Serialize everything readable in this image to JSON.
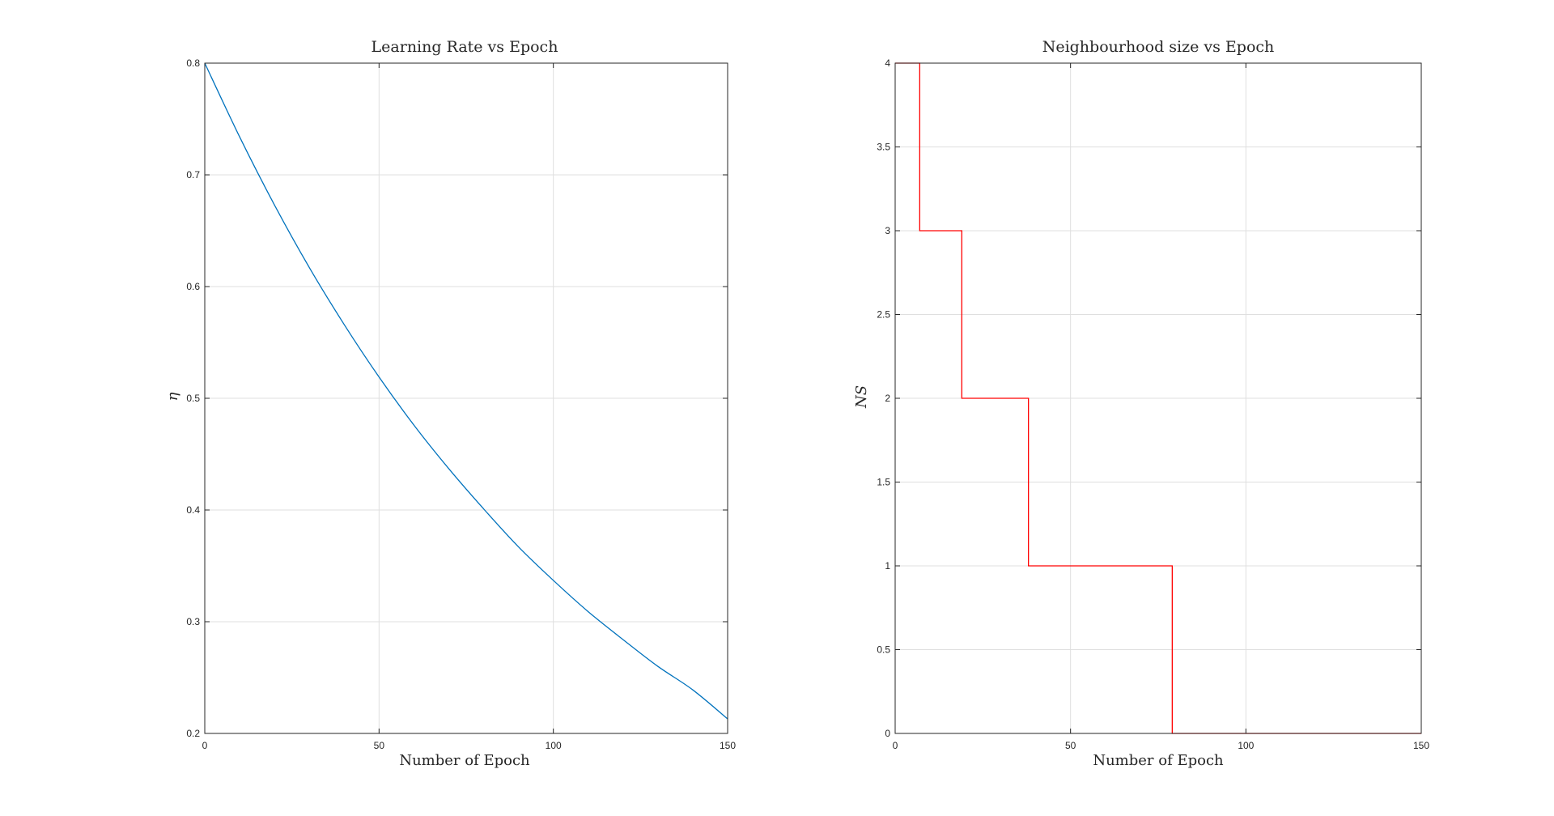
{
  "chart_data": [
    {
      "type": "line",
      "title": "Learning Rate vs Epoch",
      "xlabel": "Number of Epoch",
      "ylabel": "η",
      "xlim": [
        0,
        150
      ],
      "ylim": [
        0.2,
        0.8
      ],
      "xticks": [
        "0",
        "50",
        "100",
        "150"
      ],
      "yticks": [
        "0.2",
        "0.3",
        "0.4",
        "0.5",
        "0.6",
        "0.7",
        "0.8"
      ],
      "grid": true,
      "legend": "none",
      "line_color": "#0072BD",
      "series": [
        {
          "x": [
            0,
            10,
            20,
            30,
            40,
            50,
            60,
            70,
            80,
            90,
            100,
            110,
            120,
            130,
            140,
            150
          ],
          "values": [
            0.8,
            0.734,
            0.673,
            0.617,
            0.566,
            0.519,
            0.476,
            0.437,
            0.401,
            0.367,
            0.337,
            0.309,
            0.284,
            0.26,
            0.239,
            0.213
          ]
        }
      ]
    },
    {
      "type": "line",
      "title": "Neighbourhood size vs Epoch",
      "xlabel": "Number of Epoch",
      "ylabel": "NS",
      "xlim": [
        0,
        150
      ],
      "ylim": [
        0,
        4
      ],
      "xticks": [
        "0",
        "50",
        "100",
        "150"
      ],
      "yticks": [
        "0",
        "0.5",
        "1",
        "1.5",
        "2",
        "2.5",
        "3",
        "3.5",
        "4"
      ],
      "grid": true,
      "legend": "none",
      "line_color": "#FF0000",
      "step": true,
      "series": [
        {
          "x": [
            0,
            7,
            7,
            19,
            19,
            38,
            38,
            79,
            79,
            150
          ],
          "values": [
            4,
            4,
            3,
            3,
            2,
            2,
            1,
            1,
            0,
            0
          ]
        }
      ]
    }
  ]
}
